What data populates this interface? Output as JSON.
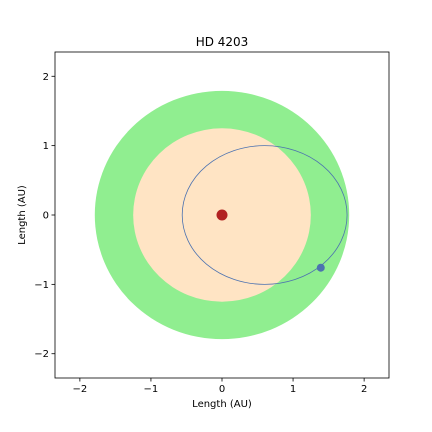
{
  "chart_data": {
    "type": "scatter",
    "title": "HD 4203",
    "xlabel": "Length (AU)",
    "ylabel": "Length (AU)",
    "xlim": [
      -2.35,
      2.35
    ],
    "ylim": [
      -2.35,
      2.35
    ],
    "xticks": [
      -2,
      -1,
      0,
      1,
      2
    ],
    "yticks": [
      -2,
      -1,
      0,
      1,
      2
    ],
    "grid": false,
    "regions": [
      {
        "shape": "circle",
        "center": [
          0,
          0
        ],
        "radius": 1.79,
        "color": "#90ee90"
      },
      {
        "shape": "circle",
        "center": [
          0,
          0
        ],
        "radius": 1.25,
        "color": "#ffe4c4"
      }
    ],
    "star": {
      "x": 0,
      "y": 0,
      "color": "#b22222"
    },
    "orbit": {
      "shape": "ellipse",
      "center": [
        0.6,
        0
      ],
      "semi_major_axis": 1.16,
      "semi_minor_axis": 1.0,
      "color": "#4c72b0"
    },
    "planet": {
      "x": 1.39,
      "y": -0.76,
      "color": "#4c72b0"
    }
  }
}
